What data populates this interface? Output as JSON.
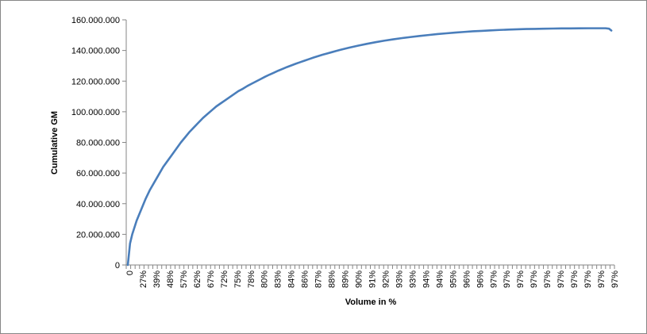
{
  "chart_data": {
    "type": "line",
    "title": "",
    "xlabel": "Volume in %",
    "ylabel": "Cumulative GM",
    "ylim": [
      0,
      160000000
    ],
    "y_ticks": [
      {
        "value": 0,
        "label": "0"
      },
      {
        "value": 20000000,
        "label": "20.000.000"
      },
      {
        "value": 40000000,
        "label": "40.000.000"
      },
      {
        "value": 60000000,
        "label": "60.000.000"
      },
      {
        "value": 80000000,
        "label": "80.000.000"
      },
      {
        "value": 100000000,
        "label": "100.000.000"
      },
      {
        "value": 120000000,
        "label": "120.000.000"
      },
      {
        "value": 140000000,
        "label": "140.000.000"
      },
      {
        "value": 160000000,
        "label": "160.000.000"
      }
    ],
    "x_tick_labels": [
      "0",
      "27%",
      "39%",
      "48%",
      "57%",
      "62%",
      "67%",
      "72%",
      "75%",
      "78%",
      "80%",
      "83%",
      "84%",
      "86%",
      "87%",
      "88%",
      "89%",
      "90%",
      "91%",
      "92%",
      "93%",
      "93%",
      "94%",
      "94%",
      "95%",
      "96%",
      "96%",
      "97%",
      "97%",
      "97%",
      "97%",
      "97%",
      "97%",
      "97%",
      "97%",
      "97%",
      "97%"
    ],
    "grid": false,
    "legend": "none",
    "colors": {
      "line": "#4a7ebb",
      "axis": "#868686",
      "frame": "#868686"
    },
    "series": [
      {
        "points": [
          [
            0,
            0
          ],
          [
            0.5,
            14000000
          ],
          [
            1,
            20000000
          ],
          [
            2,
            29000000
          ],
          [
            3,
            36000000
          ],
          [
            4,
            43000000
          ],
          [
            5,
            49000000
          ],
          [
            6,
            54000000
          ],
          [
            7,
            59000000
          ],
          [
            8,
            64000000
          ],
          [
            9,
            68000000
          ],
          [
            10,
            72000000
          ],
          [
            11,
            76000000
          ],
          [
            12,
            80000000
          ],
          [
            13,
            83500000
          ],
          [
            14,
            87000000
          ],
          [
            15,
            90000000
          ],
          [
            16,
            93000000
          ],
          [
            17,
            96000000
          ],
          [
            18,
            98500000
          ],
          [
            19,
            101000000
          ],
          [
            20,
            103500000
          ],
          [
            21,
            105500000
          ],
          [
            22,
            107500000
          ],
          [
            23,
            109500000
          ],
          [
            24,
            111500000
          ],
          [
            25,
            113500000
          ],
          [
            26,
            115000000
          ],
          [
            27,
            116800000
          ],
          [
            28,
            118300000
          ],
          [
            29,
            119800000
          ],
          [
            30,
            121300000
          ],
          [
            31,
            122800000
          ],
          [
            32,
            124200000
          ],
          [
            33,
            125500000
          ],
          [
            34,
            126800000
          ],
          [
            35,
            128000000
          ],
          [
            36,
            129200000
          ],
          [
            37,
            130300000
          ],
          [
            38,
            131400000
          ],
          [
            39,
            132400000
          ],
          [
            40,
            133400000
          ],
          [
            41,
            134400000
          ],
          [
            42,
            135400000
          ],
          [
            43,
            136300000
          ],
          [
            44,
            137200000
          ],
          [
            45,
            138000000
          ],
          [
            46,
            138800000
          ],
          [
            47,
            139600000
          ],
          [
            48,
            140400000
          ],
          [
            50,
            141800000
          ],
          [
            52,
            143100000
          ],
          [
            54,
            144300000
          ],
          [
            56,
            145400000
          ],
          [
            58,
            146400000
          ],
          [
            60,
            147300000
          ],
          [
            62,
            148100000
          ],
          [
            64,
            148800000
          ],
          [
            66,
            149500000
          ],
          [
            68,
            150100000
          ],
          [
            70,
            150700000
          ],
          [
            72,
            151200000
          ],
          [
            74,
            151700000
          ],
          [
            76,
            152100000
          ],
          [
            78,
            152500000
          ],
          [
            80,
            152800000
          ],
          [
            82,
            153100000
          ],
          [
            84,
            153400000
          ],
          [
            86,
            153600000
          ],
          [
            88,
            153800000
          ],
          [
            90,
            154000000
          ],
          [
            92,
            154100000
          ],
          [
            94,
            154200000
          ],
          [
            96,
            154300000
          ],
          [
            98,
            154400000
          ],
          [
            100,
            154400000
          ],
          [
            102,
            154450000
          ],
          [
            104,
            154500000
          ],
          [
            106,
            154500000
          ],
          [
            108,
            154500000
          ],
          [
            108.8,
            154200000
          ],
          [
            109.3,
            153000000
          ]
        ]
      }
    ]
  }
}
